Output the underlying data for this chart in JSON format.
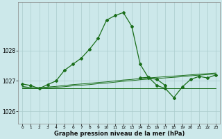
{
  "title": "Graphe pression niveau de la mer (hPa)",
  "bg_color": "#cce8ea",
  "grid_color": "#aacccc",
  "line_color": "#1a6e1a",
  "xlim": [
    -0.5,
    23.5
  ],
  "ylim": [
    1025.6,
    1029.6
  ],
  "yticks": [
    1026,
    1027,
    1028
  ],
  "xticks": [
    0,
    1,
    2,
    3,
    4,
    5,
    6,
    7,
    8,
    9,
    10,
    11,
    12,
    13,
    14,
    15,
    16,
    17,
    18,
    19,
    20,
    21,
    22,
    23
  ],
  "series_spike": [
    1026.9,
    1026.85,
    1026.75,
    1026.88,
    1027.0,
    1027.35,
    1027.55,
    1027.75,
    1028.05,
    1028.4,
    1029.0,
    1029.15,
    1029.25,
    1028.8,
    1027.55,
    1027.1,
    1027.05,
    1026.85,
    null,
    null,
    null,
    null,
    null,
    null
  ],
  "series_dip": [
    null,
    null,
    null,
    null,
    null,
    null,
    null,
    null,
    null,
    null,
    null,
    null,
    null,
    null,
    1027.1,
    1027.12,
    1026.85,
    1026.75,
    1026.45,
    1026.8,
    1027.05,
    1027.15,
    1027.1,
    1027.2
  ],
  "series_line1": [
    1026.82,
    1026.78,
    1026.78,
    1026.8,
    1026.82,
    1026.85,
    1026.88,
    1026.9,
    1026.92,
    1026.95,
    1026.97,
    1027.0,
    1027.03,
    1027.05,
    1027.08,
    1027.1,
    1027.12,
    1027.14,
    1027.16,
    1027.18,
    1027.2,
    1027.22,
    1027.24,
    1027.26
  ],
  "series_line2": [
    1026.78,
    1026.75,
    1026.75,
    1026.77,
    1026.79,
    1026.81,
    1026.84,
    1026.86,
    1026.88,
    1026.91,
    1026.93,
    1026.96,
    1026.99,
    1027.01,
    1027.04,
    1027.06,
    1027.08,
    1027.1,
    1027.12,
    1027.14,
    1027.17,
    1027.19,
    1027.21,
    1027.23
  ],
  "series_line3": [
    1026.75,
    1026.75,
    1026.75,
    1026.75,
    1026.75,
    1026.75,
    1026.75,
    1026.75,
    1026.75,
    1026.75,
    1026.75,
    1026.75,
    1026.75,
    1026.75,
    1026.75,
    1026.75,
    1026.75,
    1026.75,
    1026.75,
    1026.75,
    1026.75,
    1026.75,
    1026.75,
    1026.75
  ]
}
